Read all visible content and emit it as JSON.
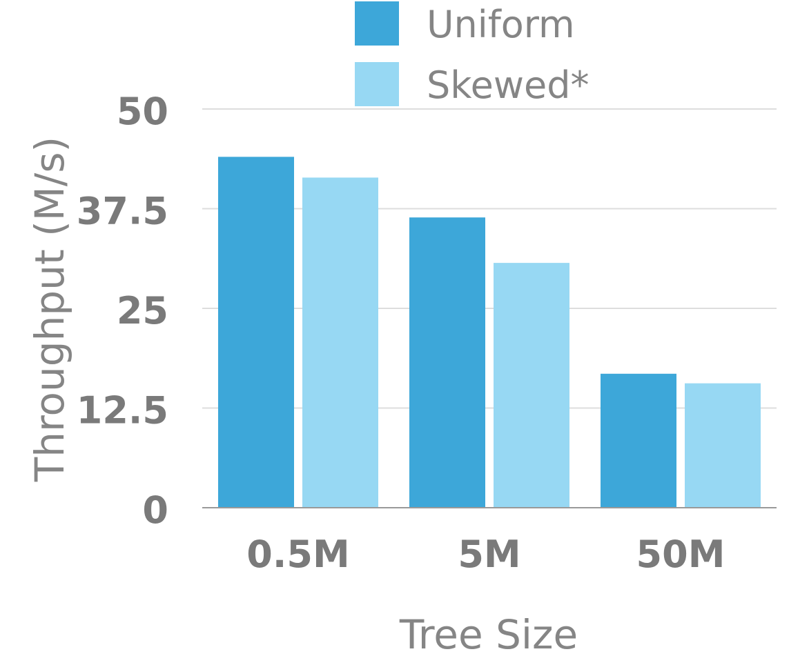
{
  "chart_data": {
    "type": "bar",
    "title": "",
    "xlabel": "Tree Size",
    "ylabel": "Throughput (M/s)",
    "categories": [
      "0.5M",
      "5M",
      "50M"
    ],
    "series": [
      {
        "name": "Uniform",
        "values": [
          44.0,
          36.4,
          16.8
        ],
        "color": "#3da7d9"
      },
      {
        "name": "Skewed*",
        "values": [
          41.4,
          30.7,
          15.6
        ],
        "color": "#97d8f3"
      }
    ],
    "ylim": [
      0,
      50
    ],
    "yticks": [
      0,
      12.5,
      25,
      37.5,
      50
    ],
    "ytick_labels": [
      "0",
      "12.5",
      "25",
      "37.5",
      "50"
    ],
    "grid": true,
    "legend_position": "top",
    "colors": {
      "gridline": "#dddddd",
      "axis": "#999999",
      "text": "#7a7a7a"
    }
  }
}
